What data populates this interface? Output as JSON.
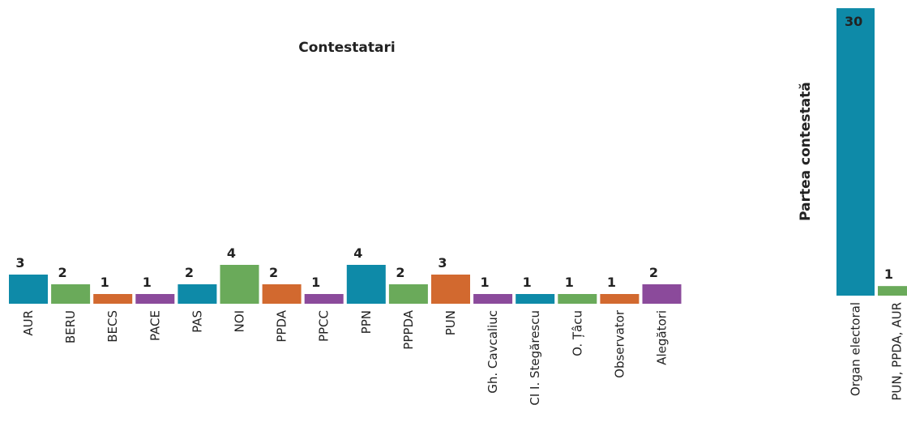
{
  "chart_data": [
    {
      "type": "bar",
      "title": "Contestatari",
      "categories": [
        "AUR",
        "BERU",
        "BECS",
        "PACE",
        "PAS",
        "NOI",
        "PPDA",
        "PPCC",
        "PPN",
        "PPPDA",
        "PUN",
        "Gh. Cavcaliuc",
        "CI I. Stegărescu",
        "O. Țâcu",
        "Observator",
        "Alegători"
      ],
      "values": [
        3,
        2,
        1,
        1,
        2,
        4,
        2,
        1,
        4,
        2,
        3,
        1,
        1,
        1,
        1,
        2
      ],
      "colors": [
        "#0e8aa8",
        "#6aaa5a",
        "#d2692f",
        "#8b4a9b",
        "#0e8aa8",
        "#6aaa5a",
        "#d2692f",
        "#8b4a9b",
        "#0e8aa8",
        "#6aaa5a",
        "#d2692f",
        "#8b4a9b",
        "#0e8aa8",
        "#6aaa5a",
        "#d2692f",
        "#8b4a9b"
      ]
    },
    {
      "type": "bar",
      "title": "Partea contestată",
      "categories": [
        "Organ electoral",
        "PUN, PPDA, AUR"
      ],
      "values": [
        30,
        1
      ],
      "colors": [
        "#0e8aa8",
        "#6aaa5a"
      ]
    }
  ]
}
